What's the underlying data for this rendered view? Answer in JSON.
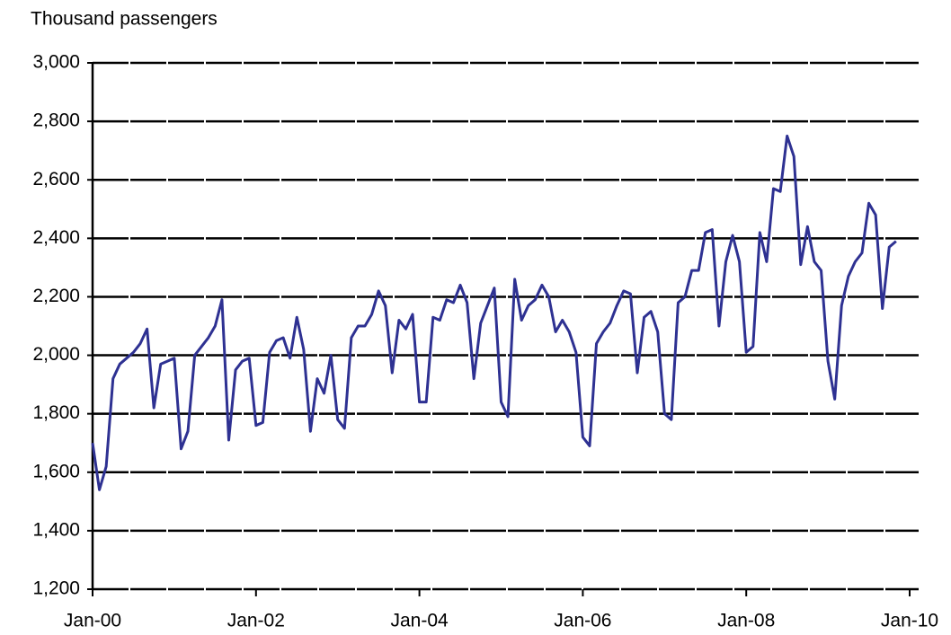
{
  "chart_data": {
    "type": "line",
    "title": "Thousand passengers",
    "x": [
      "2000-01",
      "2000-02",
      "2000-03",
      "2000-04",
      "2000-05",
      "2000-06",
      "2000-07",
      "2000-08",
      "2000-09",
      "2000-10",
      "2000-11",
      "2000-12",
      "2001-01",
      "2001-02",
      "2001-03",
      "2001-04",
      "2001-05",
      "2001-06",
      "2001-07",
      "2001-08",
      "2001-09",
      "2001-10",
      "2001-11",
      "2001-12",
      "2002-01",
      "2002-02",
      "2002-03",
      "2002-04",
      "2002-05",
      "2002-06",
      "2002-07",
      "2002-08",
      "2002-09",
      "2002-10",
      "2002-11",
      "2002-12",
      "2003-01",
      "2003-02",
      "2003-03",
      "2003-04",
      "2003-05",
      "2003-06",
      "2003-07",
      "2003-08",
      "2003-09",
      "2003-10",
      "2003-11",
      "2003-12",
      "2004-01",
      "2004-02",
      "2004-03",
      "2004-04",
      "2004-05",
      "2004-06",
      "2004-07",
      "2004-08",
      "2004-09",
      "2004-10",
      "2004-11",
      "2004-12",
      "2005-01",
      "2005-02",
      "2005-03",
      "2005-04",
      "2005-05",
      "2005-06",
      "2005-07",
      "2005-08",
      "2005-09",
      "2005-10",
      "2005-11",
      "2005-12",
      "2006-01",
      "2006-02",
      "2006-03",
      "2006-04",
      "2006-05",
      "2006-06",
      "2006-07",
      "2006-08",
      "2006-09",
      "2006-10",
      "2006-11",
      "2006-12",
      "2007-01",
      "2007-02",
      "2007-03",
      "2007-04",
      "2007-05",
      "2007-06",
      "2007-07",
      "2007-08",
      "2007-09",
      "2007-10",
      "2007-11",
      "2007-12",
      "2008-01",
      "2008-02",
      "2008-03",
      "2008-04",
      "2008-05",
      "2008-06",
      "2008-07",
      "2008-08",
      "2008-09",
      "2008-10",
      "2008-11",
      "2008-12",
      "2009-01",
      "2009-02",
      "2009-03",
      "2009-04",
      "2009-05",
      "2009-06",
      "2009-07",
      "2009-08",
      "2009-09",
      "2009-10",
      "2009-11"
    ],
    "series": [
      {
        "name": "Passengers",
        "color": "#2e3192",
        "values": [
          1700,
          1540,
          1620,
          1920,
          1970,
          1990,
          2010,
          2040,
          2090,
          1820,
          1970,
          1980,
          1990,
          1680,
          1740,
          2000,
          2030,
          2060,
          2100,
          2190,
          1710,
          1950,
          1980,
          1990,
          1760,
          1770,
          2010,
          2050,
          2060,
          1990,
          2130,
          2020,
          1740,
          1920,
          1870,
          2000,
          1780,
          1750,
          2060,
          2100,
          2100,
          2140,
          2220,
          2170,
          1940,
          2120,
          2090,
          2140,
          1840,
          1840,
          2130,
          2120,
          2190,
          2180,
          2240,
          2180,
          1920,
          2110,
          2170,
          2230,
          1840,
          1790,
          2260,
          2120,
          2170,
          2190,
          2240,
          2200,
          2080,
          2120,
          2080,
          2010,
          1720,
          1690,
          2040,
          2080,
          2110,
          2170,
          2220,
          2210,
          1940,
          2130,
          2150,
          2080,
          1800,
          1780,
          2180,
          2200,
          2290,
          2290,
          2420,
          2430,
          2100,
          2320,
          2410,
          2320,
          2010,
          2030,
          2420,
          2320,
          2570,
          2560,
          2750,
          2680,
          2310,
          2440,
          2320,
          2290,
          1980,
          1850,
          2170,
          2270,
          2320,
          2350,
          2520,
          2480,
          2160,
          2370,
          2390
        ]
      }
    ],
    "xlim": [
      "2000-01",
      "2010-01"
    ],
    "xticks": [
      {
        "value": "2000-01",
        "label": "Jan-00"
      },
      {
        "value": "2002-01",
        "label": "Jan-02"
      },
      {
        "value": "2004-01",
        "label": "Jan-04"
      },
      {
        "value": "2006-01",
        "label": "Jan-06"
      },
      {
        "value": "2008-01",
        "label": "Jan-08"
      },
      {
        "value": "2010-01",
        "label": "Jan-10"
      }
    ],
    "ylim": [
      1200,
      3000
    ],
    "yticks": [
      {
        "value": 1200,
        "label": "1,200"
      },
      {
        "value": 1400,
        "label": "1,400"
      },
      {
        "value": 1600,
        "label": "1,600"
      },
      {
        "value": 1800,
        "label": "1,800"
      },
      {
        "value": 2000,
        "label": "2,000"
      },
      {
        "value": 2200,
        "label": "2,200"
      },
      {
        "value": 2400,
        "label": "2,400"
      },
      {
        "value": 2600,
        "label": "2,600"
      },
      {
        "value": 2800,
        "label": "2,800"
      },
      {
        "value": 3000,
        "label": "3,000"
      }
    ],
    "grid": true
  }
}
